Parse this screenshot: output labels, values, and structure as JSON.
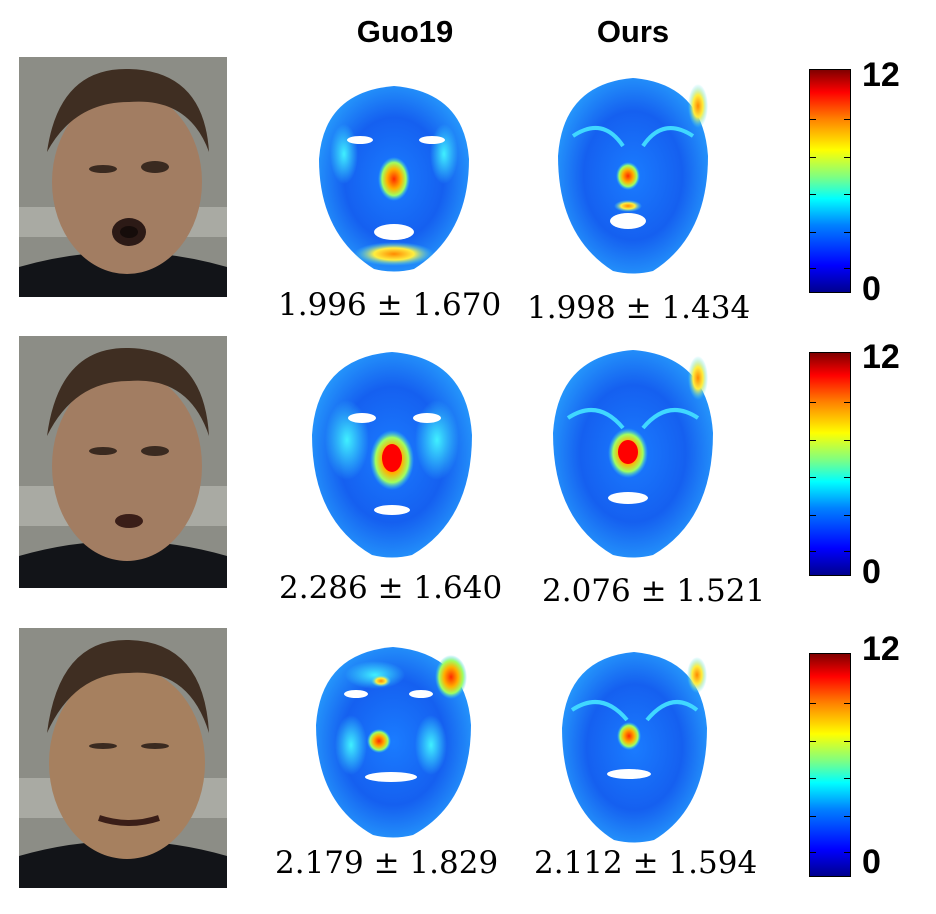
{
  "columns": {
    "left": "Guo19",
    "right": "Ours"
  },
  "colorbar": {
    "max": "12",
    "min": "0"
  },
  "rows": [
    {
      "guo19": "1.996 ± 1.670",
      "ours": "1.998 ± 1.434"
    },
    {
      "guo19": "2.286 ± 1.640",
      "ours": "2.076 ± 1.521"
    },
    {
      "guo19": "2.179 ± 1.829",
      "ours": "2.112 ± 1.594"
    }
  ],
  "colors": {
    "error_low": "#0000ff",
    "error_mid": "#00ffff",
    "error_high": "#ff0000"
  }
}
